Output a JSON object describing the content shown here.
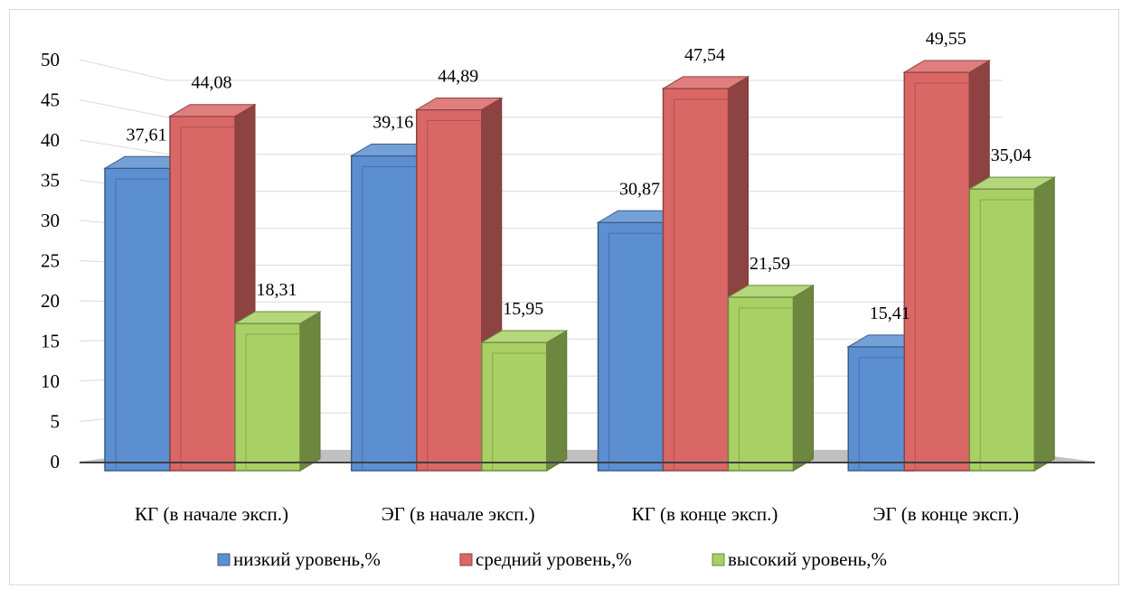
{
  "chart_data": {
    "type": "bar",
    "title": "",
    "xlabel": "",
    "ylabel": "",
    "ylim": [
      0,
      50
    ],
    "yticks": [
      0,
      5,
      10,
      15,
      20,
      25,
      30,
      35,
      40,
      45,
      50
    ],
    "grid": true,
    "legend": "bottom",
    "categories": [
      "КГ (в начале эксп.)",
      "ЭГ (в начале эксп.)",
      "КГ (в конце эксп.)",
      "ЭГ (в конце эксп.)"
    ],
    "series": [
      {
        "name": "низкий уровень,%",
        "color": "#5b8fd1",
        "values": [
          37.61,
          39.16,
          30.87,
          15.41
        ],
        "labels": [
          "37,61",
          "39,16",
          "30,87",
          "15,41"
        ]
      },
      {
        "name": "средний уровень,%",
        "color": "#d96766",
        "values": [
          44.08,
          44.89,
          47.54,
          49.55
        ],
        "labels": [
          "44,08",
          "44,89",
          "47,54",
          "49,55"
        ]
      },
      {
        "name": "высокий уровень,%",
        "color": "#a8d064",
        "values": [
          18.31,
          15.95,
          21.59,
          35.04
        ],
        "labels": [
          "18,31",
          "15,95",
          "21,59",
          "35,04"
        ]
      }
    ]
  }
}
